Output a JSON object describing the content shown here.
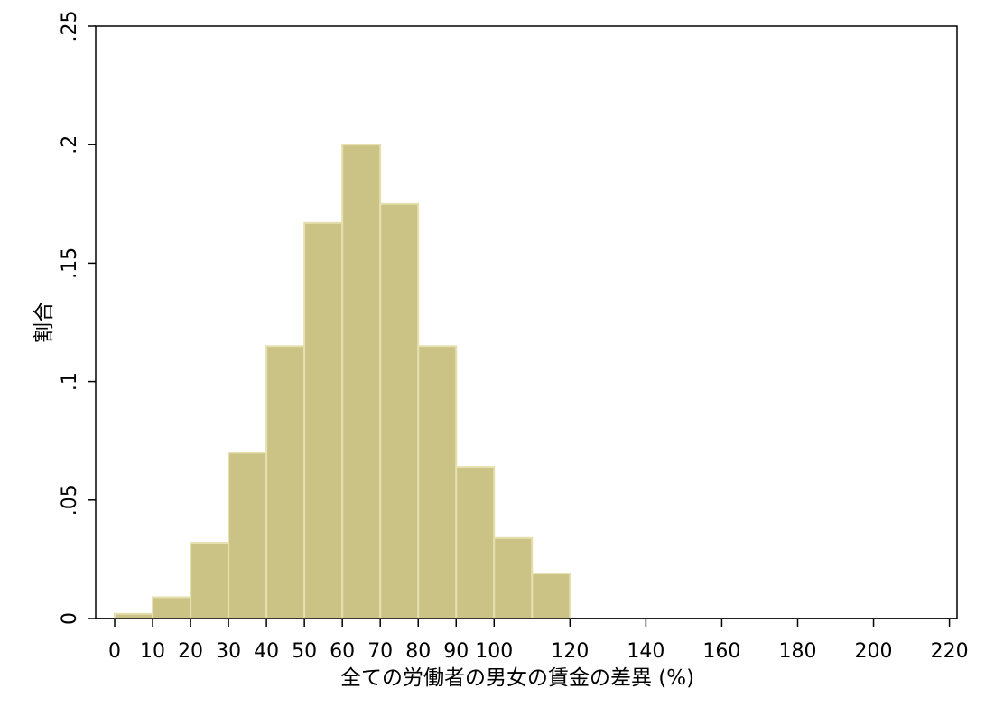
{
  "chart_data": {
    "type": "bar",
    "subtype": "histogram",
    "xlabel": "全ての労働者の男女の賃金の差異 (%)",
    "ylabel": "割合",
    "xlim": [
      -5,
      222
    ],
    "ylim": [
      0,
      0.25
    ],
    "xticks": [
      0,
      10,
      20,
      30,
      40,
      50,
      60,
      70,
      80,
      90,
      100,
      120,
      140,
      160,
      180,
      200,
      220
    ],
    "xtick_labels": [
      "0",
      "10",
      "20",
      "30",
      "40",
      "50",
      "60",
      "70",
      "80",
      "90",
      "100",
      "120",
      "140",
      "160",
      "180",
      "200",
      "220"
    ],
    "yticks": [
      0,
      0.05,
      0.1,
      0.15,
      0.2,
      0.25
    ],
    "ytick_labels": [
      "0",
      ".05",
      ".1",
      ".15",
      ".2",
      ".25"
    ],
    "bins": [
      {
        "x0": 0,
        "x1": 10,
        "value": 0.002
      },
      {
        "x0": 10,
        "x1": 20,
        "value": 0.009
      },
      {
        "x0": 20,
        "x1": 30,
        "value": 0.032
      },
      {
        "x0": 30,
        "x1": 40,
        "value": 0.07
      },
      {
        "x0": 40,
        "x1": 50,
        "value": 0.115
      },
      {
        "x0": 50,
        "x1": 60,
        "value": 0.167
      },
      {
        "x0": 60,
        "x1": 70,
        "value": 0.2
      },
      {
        "x0": 70,
        "x1": 80,
        "value": 0.175
      },
      {
        "x0": 80,
        "x1": 90,
        "value": 0.115
      },
      {
        "x0": 90,
        "x1": 100,
        "value": 0.064
      },
      {
        "x0": 100,
        "x1": 110,
        "value": 0.034
      },
      {
        "x0": 110,
        "x1": 120,
        "value": 0.019
      }
    ],
    "bar_fill": "#cbc385",
    "bar_edge": "#e6e0b0",
    "grid": false,
    "legend": false
  }
}
